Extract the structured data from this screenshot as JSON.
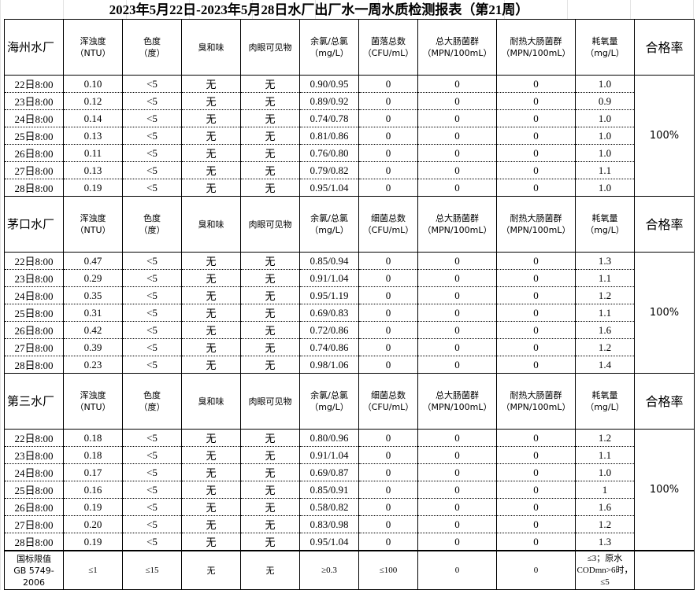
{
  "title": "2023年5月22日-2023年5月28日水厂出厂水一周水质检测报表（第21周）",
  "colors": {
    "border": "#000000",
    "grid": "#e3e3e3"
  },
  "blocks": [
    {
      "plant": "海州水厂",
      "headers": [
        "浑浊度\n（NTU）",
        "色度\n（度）",
        "臭和味",
        "肉眼可见物",
        "余氯/总氯\n（mg/L）",
        "菌落总数\n（CFU/mL）",
        "总大肠菌群\n（MPN/100mL）",
        "耐热大肠菌群\n（MPN/100mL）",
        "耗氧量\n（mg/L）"
      ],
      "rate_label": "合格率",
      "rate": "100%",
      "rows": [
        [
          "22日8:00",
          "0.10",
          "<5",
          "无",
          "无",
          "0.90/0.95",
          "0",
          "0",
          "0",
          "1.0"
        ],
        [
          "23日8:00",
          "0.12",
          "<5",
          "无",
          "无",
          "0.89/0.92",
          "0",
          "0",
          "0",
          "0.9"
        ],
        [
          "24日8:00",
          "0.14",
          "<5",
          "无",
          "无",
          "0.74/0.78",
          "0",
          "0",
          "0",
          "1.0"
        ],
        [
          "25日8:00",
          "0.13",
          "<5",
          "无",
          "无",
          "0.81/0.86",
          "0",
          "0",
          "0",
          "1.0"
        ],
        [
          "26日8:00",
          "0.11",
          "<5",
          "无",
          "无",
          "0.76/0.80",
          "0",
          "0",
          "0",
          "1.0"
        ],
        [
          "27日8:00",
          "0.13",
          "<5",
          "无",
          "无",
          "0.79/0.82",
          "0",
          "0",
          "0",
          "1.1"
        ],
        [
          "28日8:00",
          "0.19",
          "<5",
          "无",
          "无",
          "0.95/1.04",
          "0",
          "0",
          "0",
          "1.0"
        ]
      ]
    },
    {
      "plant": "茅口水厂",
      "headers": [
        "浑浊度\n（NTU）",
        "色度\n（度）",
        "臭和味",
        "肉眼可见物",
        "余氯/总氯\n（mg/L）",
        "细菌总数\n（CFU/mL）",
        "总大肠菌群\n（MPN/100mL）",
        "耐热大肠菌群\n（MPN/100mL）",
        "耗氧量\n（mg/L）"
      ],
      "rate_label": "合格率",
      "rate": "100%",
      "rows": [
        [
          "22日8:00",
          "0.47",
          "<5",
          "无",
          "无",
          "0.85/0.94",
          "0",
          "0",
          "0",
          "1.3"
        ],
        [
          "23日8:00",
          "0.29",
          "<5",
          "无",
          "无",
          "0.91/1.04",
          "0",
          "0",
          "0",
          "1.1"
        ],
        [
          "24日8:00",
          "0.35",
          "<5",
          "无",
          "无",
          "0.95/1.19",
          "0",
          "0",
          "0",
          "1.2"
        ],
        [
          "25日8:00",
          "0.31",
          "<5",
          "无",
          "无",
          "0.69/0.83",
          "0",
          "0",
          "0",
          "1.1"
        ],
        [
          "26日8:00",
          "0.42",
          "<5",
          "无",
          "无",
          "0.72/0.86",
          "0",
          "0",
          "0",
          "1.6"
        ],
        [
          "27日8:00",
          "0.39",
          "<5",
          "无",
          "无",
          "0.74/0.86",
          "0",
          "0",
          "0",
          "1.2"
        ],
        [
          "28日8:00",
          "0.23",
          "<5",
          "无",
          "无",
          "0.98/1.06",
          "0",
          "0",
          "0",
          "1.4"
        ]
      ]
    },
    {
      "plant": "第三水厂",
      "headers": [
        "浑浊度\n（NTU）",
        "色度\n（度）",
        "臭和味",
        "肉眼可见物",
        "余氯/总氯\n（mg/L）",
        "细菌总数\n（CFU/mL）",
        "总大肠菌群\n（MPN/100mL）",
        "耐热大肠菌群\n（MPN/100mL）",
        "耗氧量\n（mg/L）"
      ],
      "rate_label": "合格率",
      "rate": "100%",
      "rows": [
        [
          "22日8:00",
          "0.18",
          "<5",
          "无",
          "无",
          "0.80/0.96",
          "0",
          "0",
          "0",
          "1.2"
        ],
        [
          "23日8:00",
          "0.18",
          "<5",
          "无",
          "无",
          "0.91/1.04",
          "0",
          "0",
          "0",
          "1.1"
        ],
        [
          "24日8:00",
          "0.17",
          "<5",
          "无",
          "无",
          "0.69/0.87",
          "0",
          "0",
          "0",
          "1.0"
        ],
        [
          "25日8:00",
          "0.16",
          "<5",
          "无",
          "无",
          "0.85/0.91",
          "0",
          "0",
          "0",
          "1"
        ],
        [
          "26日8:00",
          "0.19",
          "<5",
          "无",
          "无",
          "0.58/0.82",
          "0",
          "0",
          "0",
          "1.6"
        ],
        [
          "27日8:00",
          "0.20",
          "<5",
          "无",
          "无",
          "0.83/0.98",
          "0",
          "0",
          "0",
          "1.2"
        ],
        [
          "28日8:00",
          "0.19",
          "<5",
          "无",
          "无",
          "0.95/1.04",
          "0",
          "0",
          "0",
          "1.3"
        ]
      ]
    }
  ],
  "standard": {
    "label": "国标限值\nGB 5749-2006",
    "values": [
      "≤1",
      "≤15",
      "无",
      "无",
      "≥0.3",
      "≤100",
      "0",
      "0",
      "≤3；原水CODmn>6时，≤5"
    ]
  }
}
